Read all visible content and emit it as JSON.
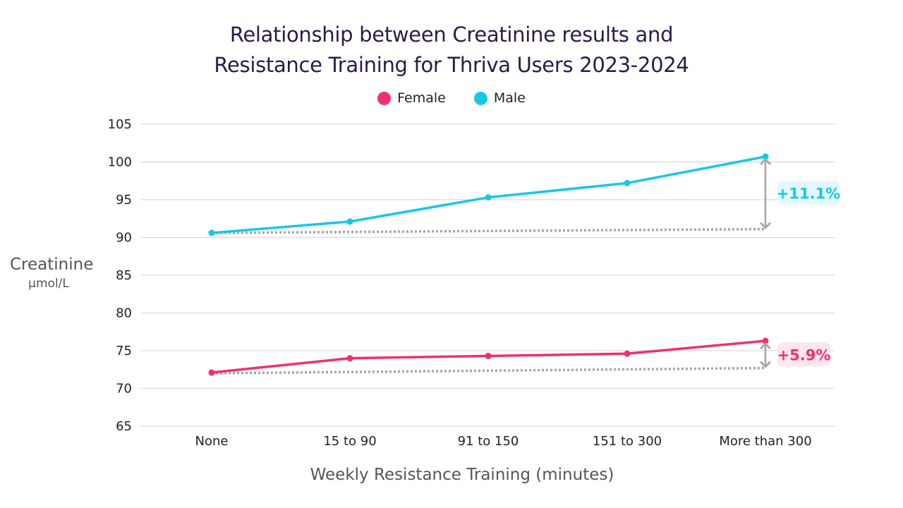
{
  "chart_data": {
    "type": "line",
    "title_lines": [
      "Relationship between Creatinine results and",
      "Resistance Training for Thriva Users 2023-2024"
    ],
    "xlabel": "Weekly Resistance Training (minutes)",
    "ylabel": "Creatinine",
    "ylabel_unit": "µmol/L",
    "categories": [
      "None",
      "15 to 90",
      "91 to 150",
      "151 to 300",
      "More than 300"
    ],
    "ylim": [
      65,
      105
    ],
    "yticks": [
      65,
      70,
      75,
      80,
      85,
      90,
      95,
      100,
      105
    ],
    "grid": true,
    "legend_position": "top-center",
    "series": [
      {
        "name": "Female",
        "color": "#f0306e",
        "values": [
          72.1,
          74.0,
          74.3,
          74.6,
          76.3
        ],
        "baseline": [
          72.0,
          72.7
        ],
        "change_label": "+5.9%",
        "badge_bg": "#fde6ee"
      },
      {
        "name": "Male",
        "color": "#17c8e4",
        "values": [
          90.6,
          92.1,
          95.3,
          97.2,
          100.7
        ],
        "baseline": [
          90.6,
          91.1
        ],
        "change_label": "+11.1%",
        "badge_bg": "#e2f8fc"
      }
    ],
    "annotation_color": "#a6a6a6",
    "gridline_color": "#d9d9d9"
  }
}
